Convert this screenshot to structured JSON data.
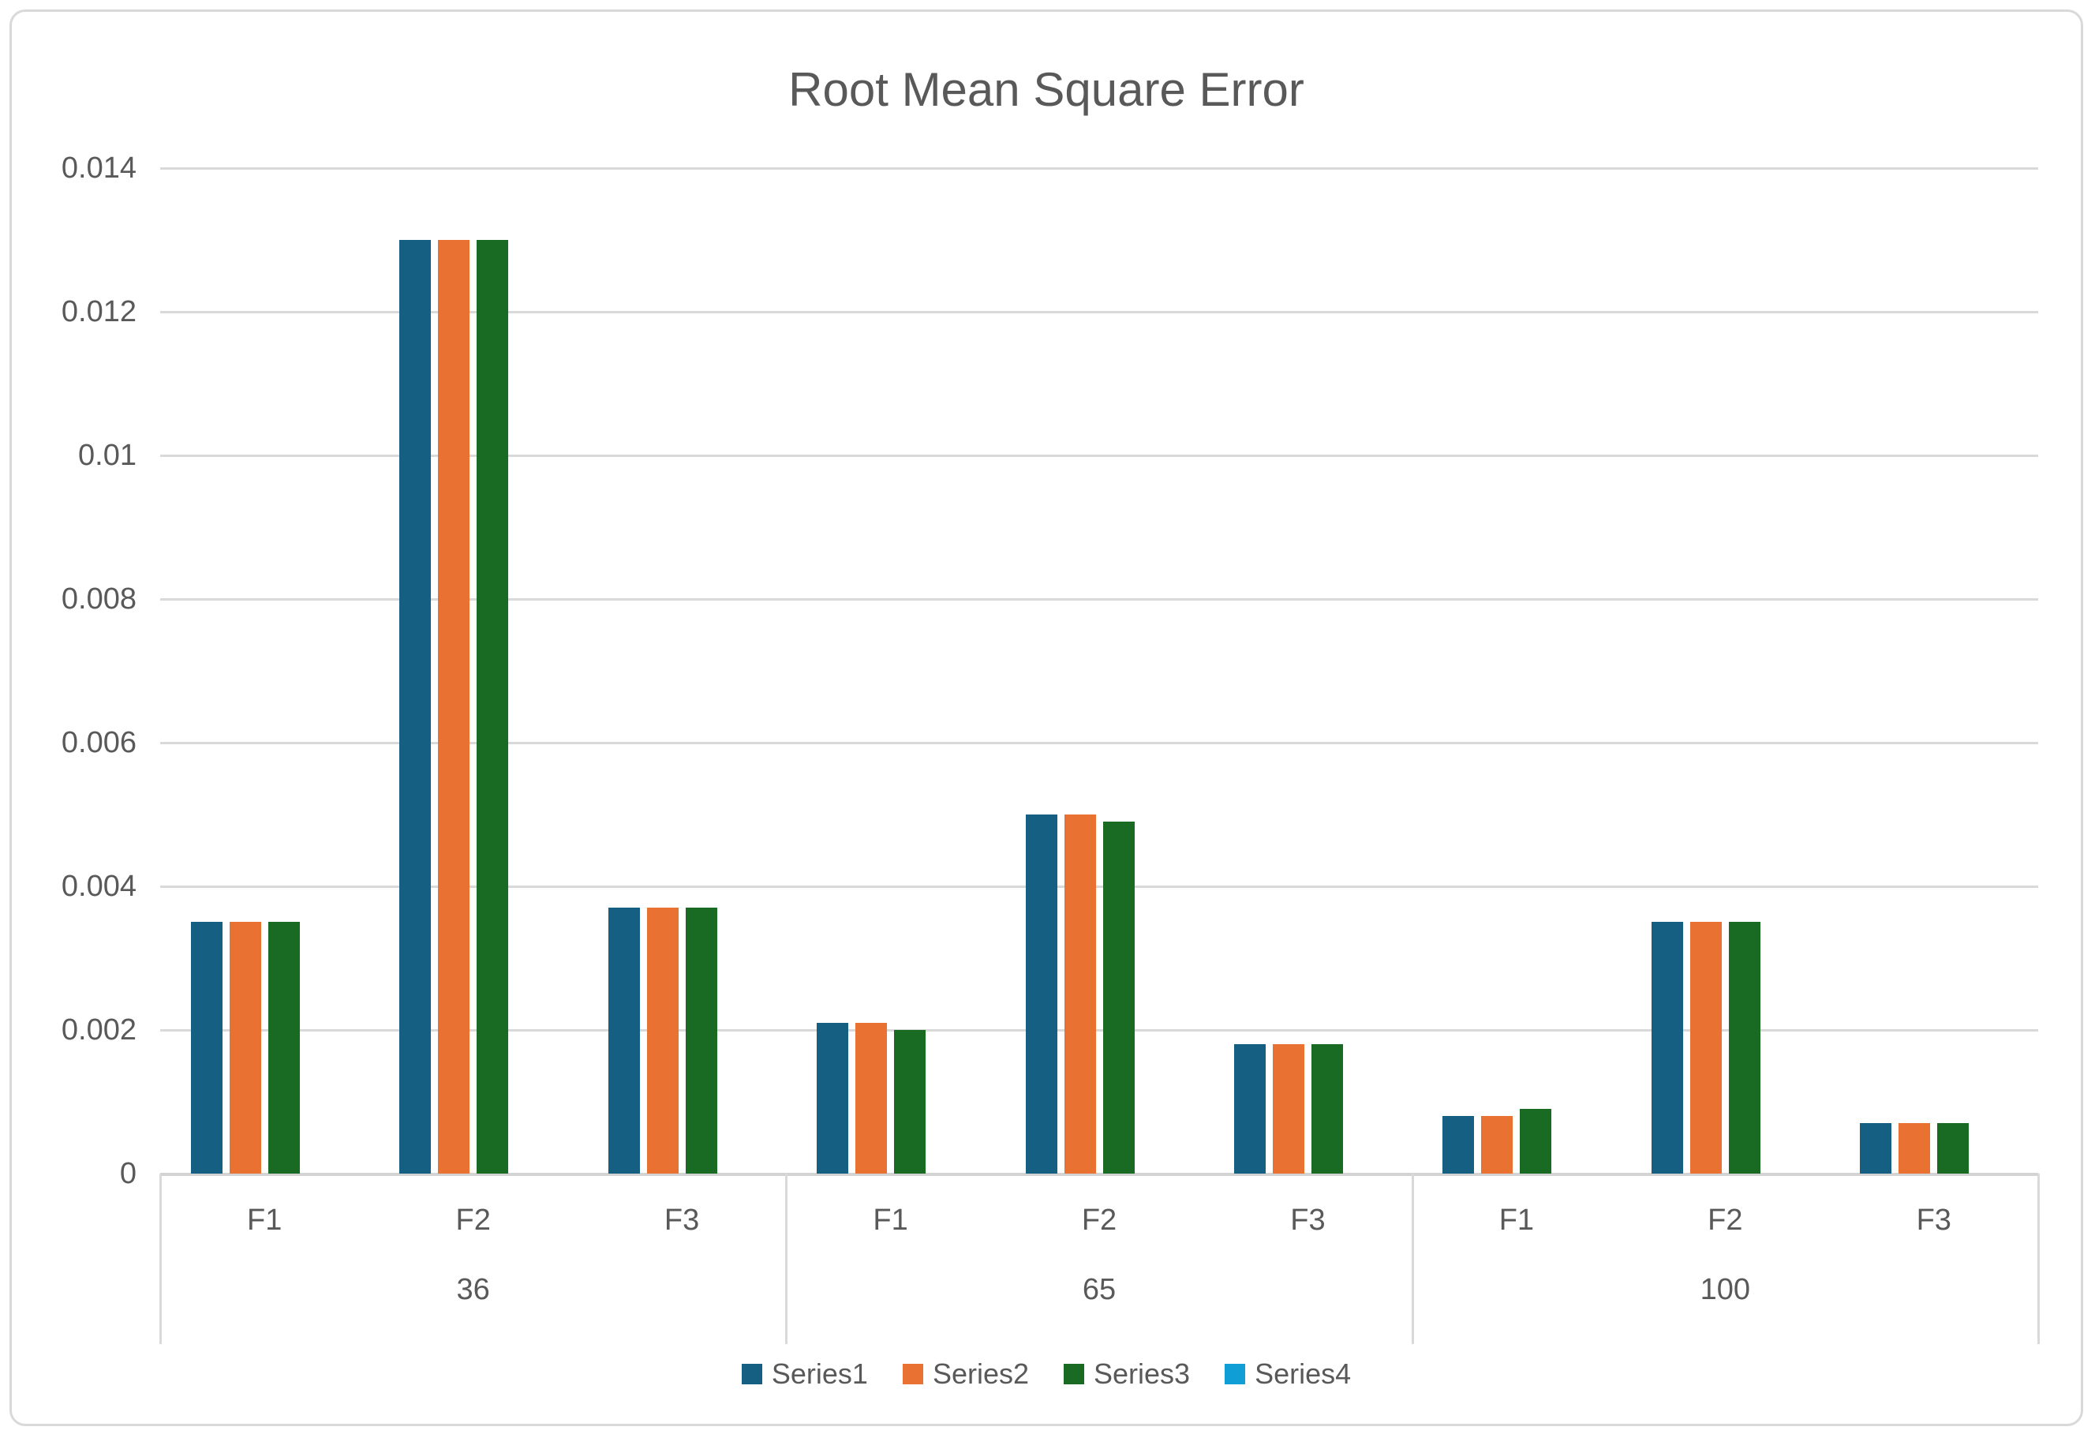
{
  "chart_title": "Root Mean Square Error",
  "chart_data": {
    "type": "bar",
    "title": "Root Mean Square Error",
    "grid": true,
    "legend_position": "bottom",
    "ylim": [
      0,
      0.014
    ],
    "y_tick_values": [
      0.014,
      0.012,
      0.01,
      0.008,
      0.006,
      0.004,
      0.002,
      0
    ],
    "y_tick_labels": [
      "0.014",
      "0.012",
      "0.01",
      "0.008",
      "0.006",
      "0.004",
      "0.002",
      "0"
    ],
    "groups": [
      "36",
      "65",
      "100"
    ],
    "categories_per_group": [
      "F1",
      "F2",
      "F3"
    ],
    "categories": [
      "36-F1",
      "36-F2",
      "36-F3",
      "65-F1",
      "65-F2",
      "65-F3",
      "100-F1",
      "100-F2",
      "100-F3"
    ],
    "series": [
      {
        "name": "Series1",
        "color": "#156082",
        "values": [
          0.0035,
          0.013,
          0.0037,
          0.0021,
          0.005,
          0.0018,
          0.0008,
          0.0035,
          0.0007
        ]
      },
      {
        "name": "Series2",
        "color": "#E97132",
        "values": [
          0.0035,
          0.013,
          0.0037,
          0.0021,
          0.005,
          0.0018,
          0.0008,
          0.0035,
          0.0007
        ]
      },
      {
        "name": "Series3",
        "color": "#196B24",
        "values": [
          0.0035,
          0.013,
          0.0037,
          0.002,
          0.0049,
          0.0018,
          0.0009,
          0.0035,
          0.0007
        ]
      },
      {
        "name": "Series4",
        "color": "#0F9ED5",
        "values": [
          0,
          0,
          0,
          0,
          0,
          0,
          0,
          0,
          0
        ]
      }
    ],
    "colors": {
      "text": "#595959",
      "gridline": "#D9D9D9",
      "axis_line": "#D3D3D3"
    }
  }
}
